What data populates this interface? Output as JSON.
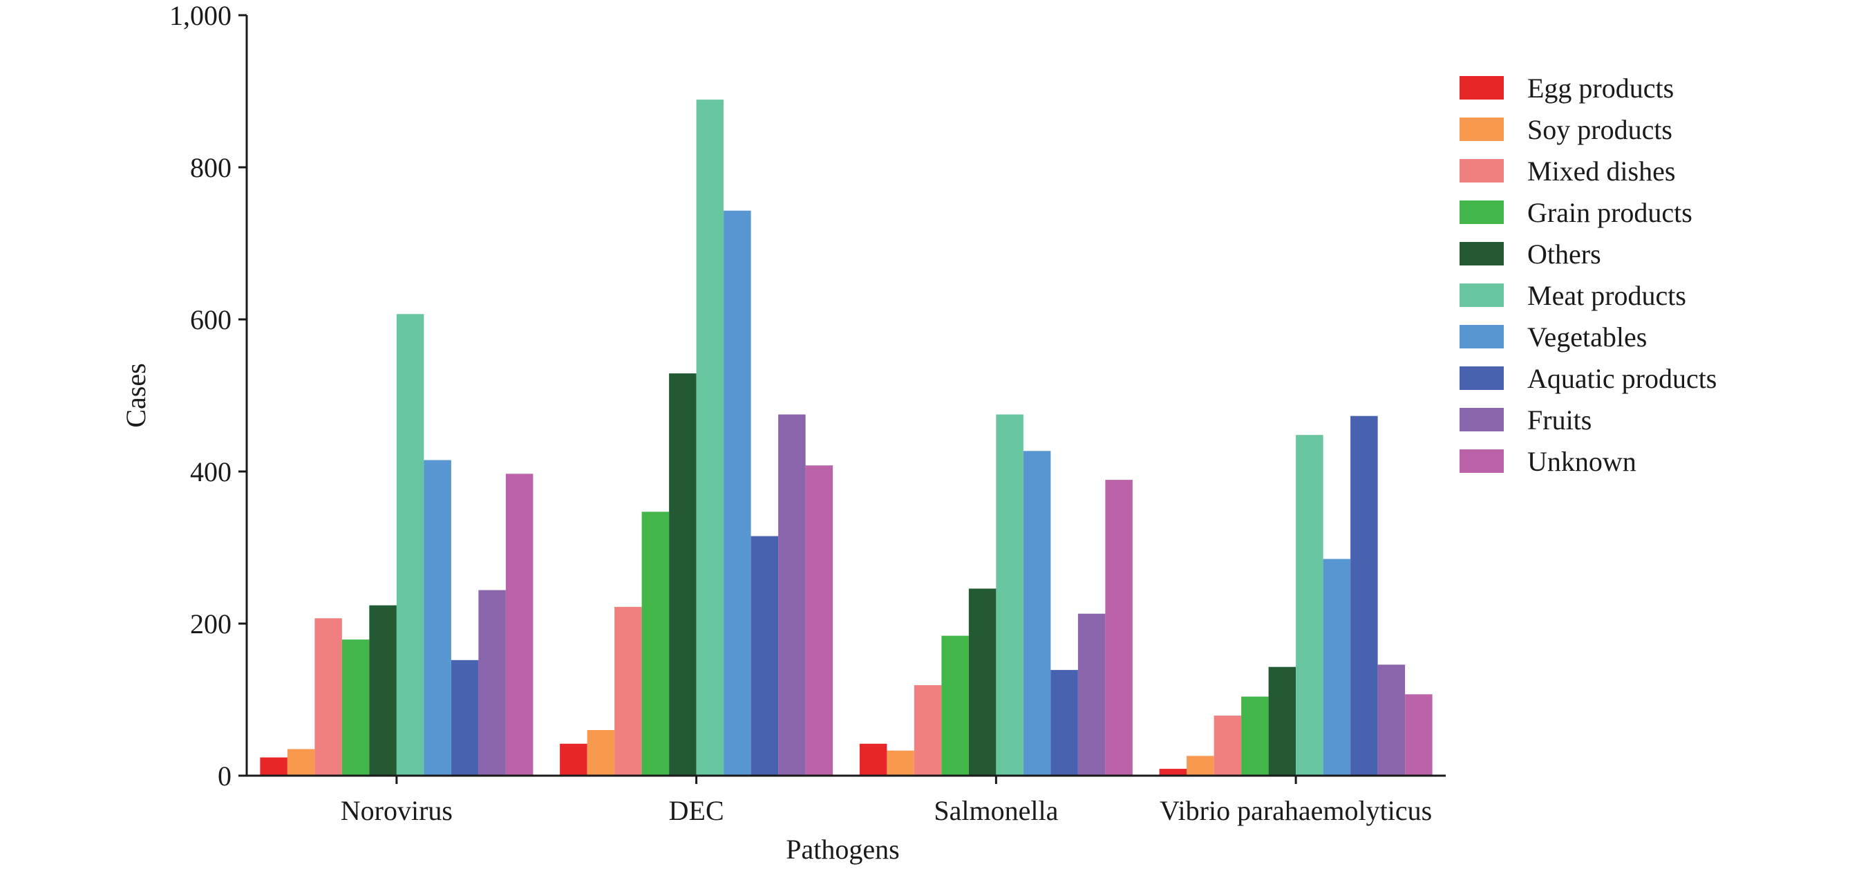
{
  "chart_data": {
    "type": "bar",
    "xlabel": "Pathogens",
    "ylabel": "Cases",
    "ylim": [
      0,
      1000
    ],
    "yticks": [
      0,
      200,
      400,
      600,
      800,
      1000
    ],
    "ytick_labels": [
      "0",
      "200",
      "400",
      "600",
      "800",
      "1,000"
    ],
    "categories": [
      "Norovirus",
      "DEC",
      "Salmonella",
      "Vibrio parahaemolyticus"
    ],
    "legend_position": "top-right",
    "grid": false,
    "series": [
      {
        "name": "Egg products",
        "color": "#e8262a",
        "values": [
          24,
          42,
          42,
          9
        ]
      },
      {
        "name": "Soy products",
        "color": "#f79a4f",
        "values": [
          35,
          60,
          33,
          26
        ]
      },
      {
        "name": "Mixed dishes",
        "color": "#f08080",
        "values": [
          207,
          222,
          119,
          79
        ]
      },
      {
        "name": "Grain products",
        "color": "#43b649",
        "values": [
          179,
          347,
          184,
          104
        ]
      },
      {
        "name": "Others",
        "color": "#235a34",
        "values": [
          224,
          529,
          246,
          143
        ]
      },
      {
        "name": "Meat products",
        "color": "#67c6a0",
        "values": [
          607,
          889,
          475,
          448
        ]
      },
      {
        "name": "Vegetables",
        "color": "#5796d1",
        "values": [
          415,
          743,
          427,
          285
        ]
      },
      {
        "name": "Aquatic products",
        "color": "#4862b0",
        "values": [
          152,
          315,
          139,
          473
        ]
      },
      {
        "name": "Fruits",
        "color": "#8b65ac",
        "values": [
          244,
          475,
          213,
          146
        ]
      },
      {
        "name": "Unknown",
        "color": "#bb63a9",
        "values": [
          397,
          408,
          389,
          107
        ]
      }
    ]
  }
}
